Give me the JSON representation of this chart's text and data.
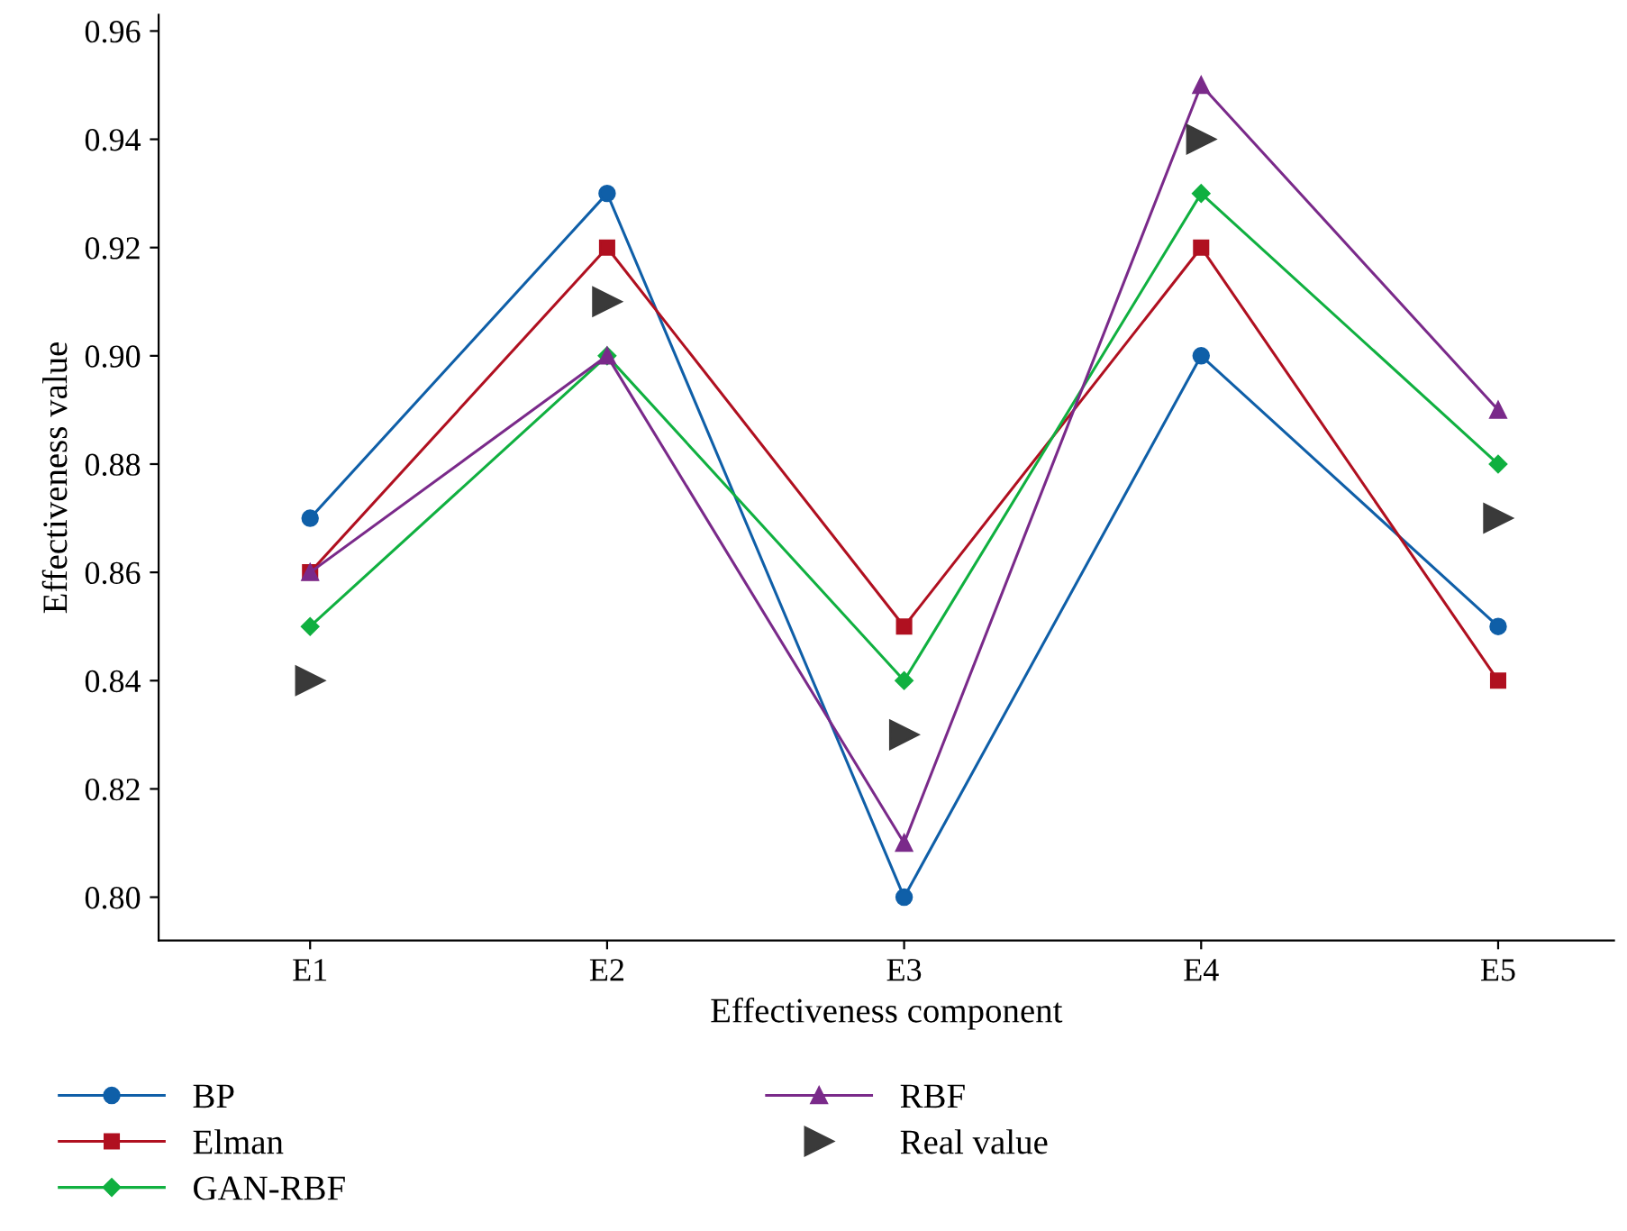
{
  "chart_data": {
    "type": "line",
    "xlabel": "Effectiveness component",
    "ylabel": "Effectiveness value",
    "categories": [
      "E1",
      "E2",
      "E3",
      "E4",
      "E5"
    ],
    "series": [
      {
        "name": "BP",
        "color": "#0f5fa8",
        "marker": "circle",
        "values": [
          0.87,
          0.93,
          0.8,
          0.9,
          0.85
        ]
      },
      {
        "name": "Elman",
        "color": "#b01020",
        "marker": "square",
        "values": [
          0.86,
          0.92,
          0.85,
          0.92,
          0.84
        ]
      },
      {
        "name": "GAN-RBF",
        "color": "#10b040",
        "marker": "diamond",
        "values": [
          0.85,
          0.9,
          0.84,
          0.93,
          0.88
        ]
      },
      {
        "name": "RBF",
        "color": "#7a2a8a",
        "marker": "triangle",
        "values": [
          0.86,
          0.9,
          0.81,
          0.95,
          0.89
        ]
      },
      {
        "name": "Real value",
        "color": "#3a3a3a",
        "type": "scatter",
        "marker": "triangle-right",
        "values": [
          0.84,
          0.91,
          0.83,
          0.94,
          0.87
        ]
      }
    ],
    "ylim": [
      0.792,
      0.963
    ],
    "yticks": [
      {
        "value": 0.8,
        "label": "0.80"
      },
      {
        "value": 0.82,
        "label": "0.82"
      },
      {
        "value": 0.84,
        "label": "0.84"
      },
      {
        "value": 0.86,
        "label": "0.86"
      },
      {
        "value": 0.88,
        "label": "0.88"
      },
      {
        "value": 0.9,
        "label": "0.90"
      },
      {
        "value": 0.92,
        "label": "0.92"
      },
      {
        "value": 0.94,
        "label": "0.94"
      },
      {
        "value": 0.96,
        "label": "0.96"
      }
    ],
    "grid": false,
    "legend": "bottom"
  }
}
